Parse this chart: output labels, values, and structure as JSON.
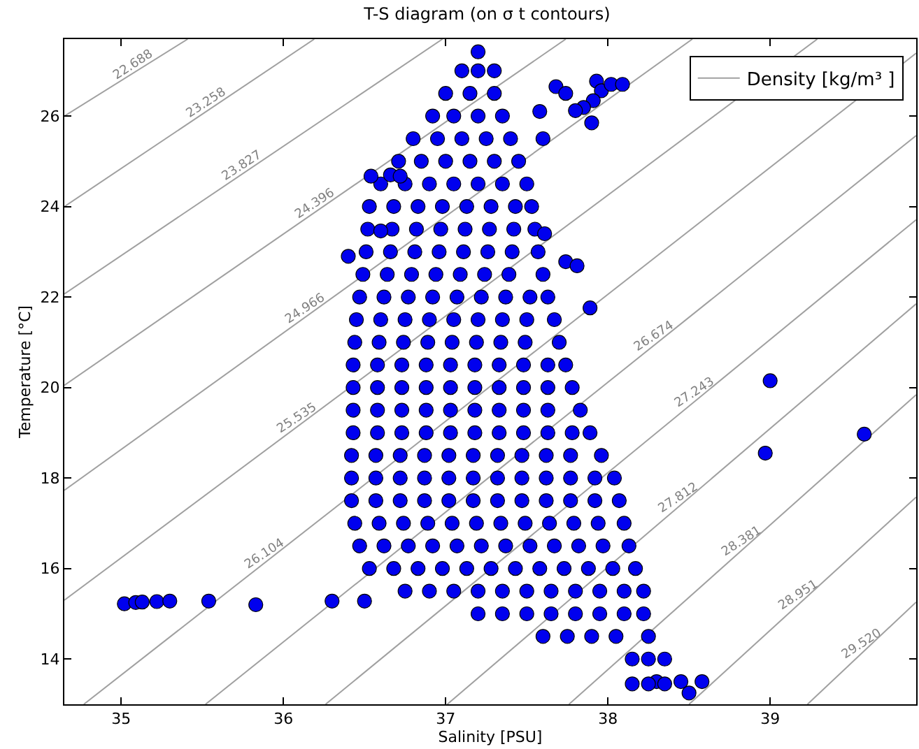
{
  "chart_data": {
    "type": "scatter",
    "title": "T-S diagram (on σ t contours)",
    "xlabel": "Salinity [PSU]",
    "ylabel": "Temperature [°C]",
    "xlim": [
      34.65,
      39.9
    ],
    "ylim": [
      13,
      27.7
    ],
    "xticks": [
      35,
      36,
      37,
      38,
      39
    ],
    "yticks": [
      14,
      16,
      18,
      20,
      22,
      24,
      26
    ],
    "grid": false,
    "legend": "top right",
    "line_style": "solid",
    "series": [
      {
        "type": "line",
        "name": "Density [kg/m³ ]",
        "color": "#a0a0a0",
        "x": [
          34.65,
          35.41
        ],
        "values": [
          26.0,
          27.7
        ]
      },
      {
        "type": "line",
        "color": "#a0a0a0",
        "x": [
          34.65,
          36.19
        ],
        "values": [
          24.0,
          27.7
        ]
      },
      {
        "type": "line",
        "color": "#a0a0a0",
        "x": [
          34.65,
          36.98
        ],
        "values": [
          22.07,
          27.7
        ]
      },
      {
        "type": "line",
        "color": "#a0a0a0",
        "x": [
          34.65,
          37.74
        ],
        "values": [
          20.05,
          27.7
        ]
      },
      {
        "type": "line",
        "color": "#a0a0a0",
        "x": [
          34.65,
          38.52
        ],
        "values": [
          17.73,
          27.7
        ]
      },
      {
        "type": "line",
        "color": "#a0a0a0",
        "x": [
          34.65,
          39.29
        ],
        "values": [
          15.3,
          27.7
        ]
      },
      {
        "type": "line",
        "color": "#a0a0a0",
        "x": [
          34.77,
          39.9
        ],
        "values": [
          13,
          27.39
        ]
      },
      {
        "type": "line",
        "color": "#a0a0a0",
        "x": [
          35.52,
          39.9
        ],
        "values": [
          13,
          25.57
        ]
      },
      {
        "type": "line",
        "color": "#a0a0a0",
        "x": [
          36.26,
          39.9
        ],
        "values": [
          13,
          23.71
        ]
      },
      {
        "type": "line",
        "color": "#a0a0a0",
        "x": [
          37.01,
          39.9
        ],
        "values": [
          13,
          21.85
        ]
      },
      {
        "type": "line",
        "color": "#a0a0a0",
        "x": [
          37.76,
          39.9
        ],
        "values": [
          13,
          19.84
        ]
      },
      {
        "type": "line",
        "color": "#a0a0a0",
        "x": [
          38.5,
          39.9
        ],
        "values": [
          13,
          17.58
        ]
      },
      {
        "type": "line",
        "color": "#a0a0a0",
        "x": [
          39.23,
          39.9
        ],
        "values": [
          13,
          15.26
        ]
      },
      {
        "type": "scatter",
        "marker": "circle",
        "color": "#0000ee",
        "x": [
          37.2,
          37.1,
          37.2,
          37.3,
          37.0,
          37.15,
          37.3,
          36.92,
          37.05,
          37.2,
          37.35,
          36.8,
          36.95,
          37.1,
          37.25,
          37.4,
          37.6,
          36.71,
          36.85,
          37.0,
          37.15,
          37.3,
          37.45,
          36.6,
          36.75,
          36.9,
          37.05,
          37.2,
          37.35,
          37.5,
          36.53,
          36.68,
          36.83,
          36.98,
          37.13,
          37.28,
          37.43,
          37.53,
          36.52,
          36.67,
          36.82,
          36.97,
          37.12,
          37.27,
          37.42,
          37.55,
          36.51,
          36.66,
          36.81,
          36.96,
          37.11,
          37.26,
          37.41,
          37.57,
          36.49,
          36.64,
          36.79,
          36.94,
          37.09,
          37.24,
          37.39,
          37.6,
          36.47,
          36.62,
          36.77,
          36.92,
          37.07,
          37.22,
          37.37,
          37.52,
          37.63,
          36.45,
          36.6,
          36.75,
          36.9,
          37.05,
          37.2,
          37.35,
          37.5,
          37.67,
          36.44,
          36.59,
          36.74,
          36.89,
          37.04,
          37.19,
          37.34,
          37.49,
          37.7,
          36.43,
          36.58,
          36.73,
          36.88,
          37.03,
          37.18,
          37.33,
          37.48,
          37.63,
          37.74,
          36.43,
          36.58,
          36.73,
          36.88,
          37.03,
          37.18,
          37.33,
          37.48,
          37.63,
          37.78,
          36.43,
          36.58,
          36.73,
          36.88,
          37.03,
          37.18,
          37.33,
          37.48,
          37.63,
          37.83,
          36.43,
          36.58,
          36.73,
          36.88,
          37.03,
          37.18,
          37.33,
          37.48,
          37.63,
          37.78,
          37.89,
          36.42,
          36.57,
          36.72,
          36.87,
          37.02,
          37.17,
          37.32,
          37.47,
          37.62,
          37.77,
          37.96,
          36.42,
          36.57,
          36.72,
          36.87,
          37.02,
          37.17,
          37.32,
          37.47,
          37.62,
          37.77,
          37.92,
          38.04,
          36.42,
          36.57,
          36.72,
          36.87,
          37.02,
          37.17,
          37.32,
          37.47,
          37.62,
          37.77,
          37.92,
          38.07,
          36.44,
          36.59,
          36.74,
          36.89,
          37.04,
          37.19,
          37.34,
          37.49,
          37.64,
          37.79,
          37.94,
          38.1,
          36.47,
          36.62,
          36.77,
          36.92,
          37.07,
          37.22,
          37.37,
          37.52,
          37.67,
          37.82,
          37.97,
          38.13,
          36.53,
          36.68,
          36.83,
          36.98,
          37.13,
          37.28,
          37.43,
          37.58,
          37.73,
          37.88,
          38.03,
          38.17,
          36.75,
          36.9,
          37.05,
          37.2,
          37.35,
          37.5,
          37.65,
          37.8,
          37.95,
          38.1,
          38.22,
          37.2,
          37.35,
          37.5,
          37.65,
          37.8,
          37.95,
          38.1,
          38.22,
          37.6,
          37.75,
          37.9,
          38.05,
          38.25,
          38.15,
          38.25,
          38.35,
          38.3,
          38.45,
          38.58,
          38.15,
          38.25,
          38.35,
          38.5,
          35.02,
          35.09,
          35.13,
          35.22,
          35.3,
          35.54,
          35.83,
          36.3,
          36.5,
          39.0,
          38.97,
          39.58,
          37.68,
          37.74,
          37.93,
          37.96,
          38.02,
          38.09,
          37.91,
          37.85,
          37.8,
          37.9,
          37.58,
          36.54,
          36.66,
          36.72,
          36.6,
          36.4,
          37.74,
          37.81,
          37.89,
          37.61
        ],
        "values": [
          27.42,
          27.0,
          27.0,
          27.0,
          26.5,
          26.5,
          26.5,
          26.0,
          26.0,
          26.0,
          26.0,
          25.5,
          25.5,
          25.5,
          25.5,
          25.5,
          25.5,
          25.0,
          25.0,
          25.0,
          25.0,
          25.0,
          25.0,
          24.5,
          24.5,
          24.5,
          24.5,
          24.5,
          24.5,
          24.5,
          24.0,
          24.0,
          24.0,
          24.0,
          24.0,
          24.0,
          24.0,
          24.0,
          23.5,
          23.5,
          23.5,
          23.5,
          23.5,
          23.5,
          23.5,
          23.5,
          23.0,
          23.0,
          23.0,
          23.0,
          23.0,
          23.0,
          23.0,
          23.0,
          22.5,
          22.5,
          22.5,
          22.5,
          22.5,
          22.5,
          22.5,
          22.5,
          22.0,
          22.0,
          22.0,
          22.0,
          22.0,
          22.0,
          22.0,
          22.0,
          22.0,
          21.5,
          21.5,
          21.5,
          21.5,
          21.5,
          21.5,
          21.5,
          21.5,
          21.5,
          21.0,
          21.0,
          21.0,
          21.0,
          21.0,
          21.0,
          21.0,
          21.0,
          21.0,
          20.5,
          20.5,
          20.5,
          20.5,
          20.5,
          20.5,
          20.5,
          20.5,
          20.5,
          20.5,
          20.0,
          20.0,
          20.0,
          20.0,
          20.0,
          20.0,
          20.0,
          20.0,
          20.0,
          20.0,
          19.5,
          19.5,
          19.5,
          19.5,
          19.5,
          19.5,
          19.5,
          19.5,
          19.5,
          19.5,
          19.0,
          19.0,
          19.0,
          19.0,
          19.0,
          19.0,
          19.0,
          19.0,
          19.0,
          19.0,
          19.0,
          18.5,
          18.5,
          18.5,
          18.5,
          18.5,
          18.5,
          18.5,
          18.5,
          18.5,
          18.5,
          18.5,
          18.0,
          18.0,
          18.0,
          18.0,
          18.0,
          18.0,
          18.0,
          18.0,
          18.0,
          18.0,
          18.0,
          18.0,
          17.5,
          17.5,
          17.5,
          17.5,
          17.5,
          17.5,
          17.5,
          17.5,
          17.5,
          17.5,
          17.5,
          17.5,
          17.0,
          17.0,
          17.0,
          17.0,
          17.0,
          17.0,
          17.0,
          17.0,
          17.0,
          17.0,
          17.0,
          17.0,
          16.5,
          16.5,
          16.5,
          16.5,
          16.5,
          16.5,
          16.5,
          16.5,
          16.5,
          16.5,
          16.5,
          16.5,
          16.0,
          16.0,
          16.0,
          16.0,
          16.0,
          16.0,
          16.0,
          16.0,
          16.0,
          16.0,
          16.0,
          16.0,
          15.5,
          15.5,
          15.5,
          15.5,
          15.5,
          15.5,
          15.5,
          15.5,
          15.5,
          15.5,
          15.5,
          15.0,
          15.0,
          15.0,
          15.0,
          15.0,
          15.0,
          15.0,
          15.0,
          14.5,
          14.5,
          14.5,
          14.5,
          14.5,
          14.0,
          14.0,
          14.0,
          13.5,
          13.5,
          13.5,
          13.45,
          13.45,
          13.45,
          13.25,
          15.22,
          15.25,
          15.26,
          15.27,
          15.28,
          15.28,
          15.2,
          15.28,
          15.28,
          20.15,
          18.55,
          18.97,
          26.65,
          26.5,
          26.77,
          26.56,
          26.7,
          26.7,
          26.34,
          26.19,
          26.12,
          25.85,
          26.1,
          24.67,
          24.7,
          24.67,
          23.46,
          22.9,
          22.78,
          22.69,
          21.76,
          23.4
        ]
      }
    ],
    "annotations": [
      {
        "text": "22.688",
        "x": 35.09,
        "y": 26.98
      },
      {
        "text": "23.258",
        "x": 35.54,
        "y": 26.14
      },
      {
        "text": "23.827",
        "x": 35.76,
        "y": 24.75
      },
      {
        "text": "24.396",
        "x": 36.21,
        "y": 23.91
      },
      {
        "text": "24.966",
        "x": 36.15,
        "y": 21.59
      },
      {
        "text": "25.535",
        "x": 36.1,
        "y": 19.17
      },
      {
        "text": "26.104",
        "x": 35.9,
        "y": 16.17
      },
      {
        "text": "26.674",
        "x": 38.3,
        "y": 20.98
      },
      {
        "text": "27.243",
        "x": 38.55,
        "y": 19.74
      },
      {
        "text": "27.812",
        "x": 38.45,
        "y": 17.41
      },
      {
        "text": "28.381",
        "x": 38.84,
        "y": 16.45
      },
      {
        "text": "28.951",
        "x": 39.19,
        "y": 15.26
      },
      {
        "text": "29.520",
        "x": 39.58,
        "y": 14.18
      }
    ]
  }
}
